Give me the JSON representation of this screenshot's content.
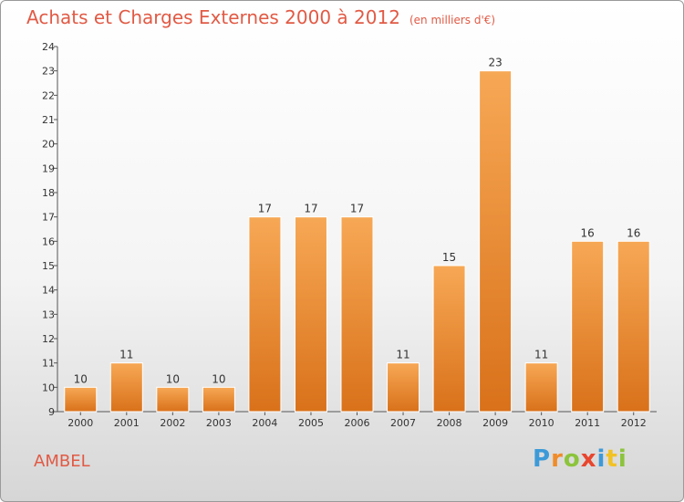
{
  "header": {
    "title": "Achats et Charges Externes 2000 à 2012",
    "subtitle": "(en milliers d'€)"
  },
  "footer": {
    "place": "AMBEL",
    "logo_letters": [
      "P",
      "r",
      "o",
      "x",
      "i",
      "t",
      "i"
    ]
  },
  "colors": {
    "bar_light": "#f7a855",
    "bar_dark": "#d9711a",
    "title": "#e15a45"
  },
  "chart_data": {
    "type": "bar",
    "title": "Achats et Charges Externes 2000 à 2012",
    "subtitle": "(en milliers d'€)",
    "xlabel": "",
    "ylabel": "",
    "categories": [
      "2000",
      "2001",
      "2002",
      "2003",
      "2004",
      "2005",
      "2006",
      "2007",
      "2008",
      "2009",
      "2010",
      "2011",
      "2012"
    ],
    "values": [
      10,
      11,
      10,
      10,
      17,
      17,
      17,
      11,
      15,
      23,
      11,
      16,
      16
    ],
    "ylim": [
      9,
      24
    ],
    "yticks": [
      9,
      10,
      11,
      12,
      13,
      14,
      15,
      16,
      17,
      18,
      19,
      20,
      21,
      22,
      23,
      24
    ],
    "grid": false,
    "legend": "none"
  }
}
